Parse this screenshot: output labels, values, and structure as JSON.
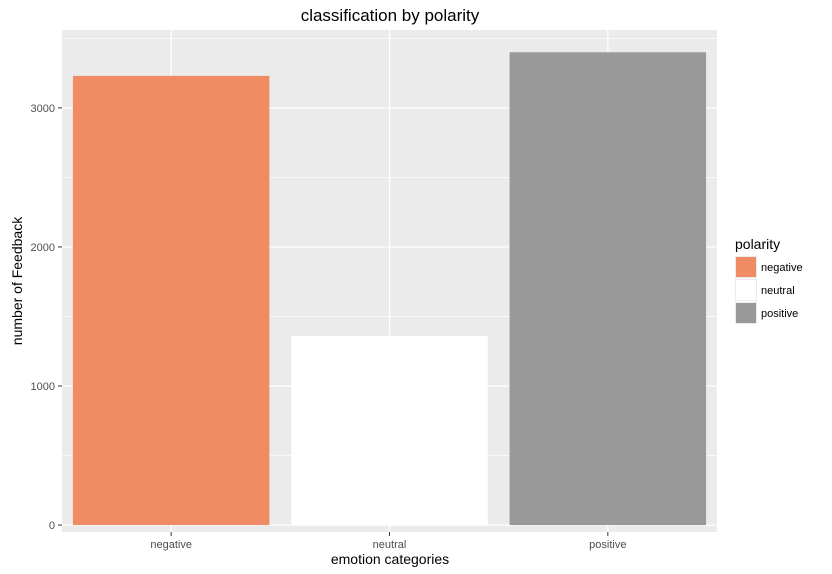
{
  "chart_data": {
    "type": "bar",
    "title": "classification by polarity",
    "xlabel": "emotion categories",
    "ylabel": "number of Feedback",
    "categories": [
      "negative",
      "neutral",
      "positive"
    ],
    "values": [
      3230,
      1360,
      3400
    ],
    "colors": [
      "#F08C63",
      "#FFFFFF",
      "#999999"
    ],
    "ylim": [
      -50,
      3560
    ],
    "yticks": [
      0,
      1000,
      2000,
      3000
    ],
    "ytick_labels": [
      "0",
      "1000",
      "2000",
      "3000"
    ],
    "grid": true,
    "panel_background": "#EBEBEB",
    "legend": {
      "title": "polarity",
      "position": "right",
      "entries": [
        {
          "label": "negative",
          "color": "#F08C63"
        },
        {
          "label": "neutral",
          "color": "#FFFFFF"
        },
        {
          "label": "positive",
          "color": "#999999"
        }
      ]
    }
  }
}
